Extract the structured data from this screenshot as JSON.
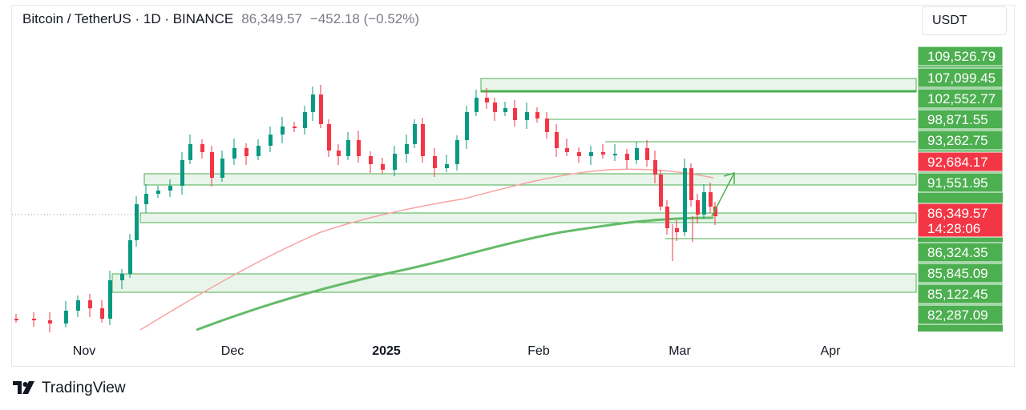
{
  "header": {
    "symbol": "Bitcoin / TetherUS · 1D · BINANCE",
    "price": "86,349.57",
    "change": "−452.18 (−0.52%)"
  },
  "currency_button": "USDT",
  "brand": {
    "name": "TradingView",
    "logo_icon": "tradingview-logo-icon"
  },
  "chart_data": {
    "type": "line",
    "symbol": "BTC/USDT",
    "timeframe": "1D",
    "x_ticks": [
      {
        "label": "Nov",
        "bold": false
      },
      {
        "label": "Dec",
        "bold": false
      },
      {
        "label": "2025",
        "bold": true
      },
      {
        "label": "Feb",
        "bold": false
      },
      {
        "label": "Mar",
        "bold": false
      },
      {
        "label": "Apr",
        "bold": false
      }
    ],
    "price_labels": [
      {
        "text": "109,526.79",
        "value": 109526.79,
        "color": "#4caf50"
      },
      {
        "text": "107,099.45",
        "value": 107099.45,
        "color": "#4caf50"
      },
      {
        "text": "102,552.77",
        "value": 102552.77,
        "color": "#4caf50"
      },
      {
        "text": "98,871.55",
        "value": 98871.55,
        "color": "#4caf50"
      },
      {
        "text": "93,262.75",
        "value": 93262.75,
        "color": "#4caf50"
      },
      {
        "text": "92,684.17",
        "value": 92684.17,
        "color": "#f23645"
      },
      {
        "text": "91,551.95",
        "value": 91551.95,
        "color": "#4caf50"
      },
      {
        "text": "86,349.57",
        "value": 86349.57,
        "color": "#f23645",
        "sub": "14:28:06"
      },
      {
        "text": "86,324.35",
        "value": 86324.35,
        "color": "#4caf50"
      },
      {
        "text": "85,845.09",
        "value": 85845.09,
        "color": "#4caf50"
      },
      {
        "text": "85,122.45",
        "value": 85122.45,
        "color": "#4caf50"
      },
      {
        "text": "82,287.09",
        "value": 82287.09,
        "color": "#4caf50"
      }
    ],
    "zones": [
      {
        "name": "resistance-top",
        "bottom": 107099.45,
        "top": 109526.79
      },
      {
        "name": "resistance-upper",
        "bottom": 102552.77,
        "top": 107099.45
      },
      {
        "name": "resistance-mid",
        "bottom": 91551.95,
        "top": 93262.75
      },
      {
        "name": "support-current",
        "bottom": 86324.35,
        "top": 86349.57
      },
      {
        "name": "support-lower",
        "bottom": 82287.09,
        "top": 85122.45
      }
    ],
    "levels": [
      98871.55,
      85845.09
    ],
    "colors": {
      "up": "#089981",
      "down": "#f23645",
      "ma_fast": "#f7a3a3",
      "ma_slow": "#66bb6a",
      "zone": "#4caf50"
    },
    "price_map": [
      [
        109526.79,
        70
      ],
      [
        107099.45,
        97
      ],
      [
        102552.77,
        123
      ],
      [
        98871.55,
        149
      ],
      [
        93262.75,
        175
      ],
      [
        92684.17,
        202
      ],
      [
        91551.95,
        228
      ],
      [
        86349.57,
        266
      ],
      [
        86324.35,
        315
      ],
      [
        85845.09,
        341
      ],
      [
        85122.45,
        367
      ],
      [
        82287.09,
        393
      ]
    ]
  }
}
